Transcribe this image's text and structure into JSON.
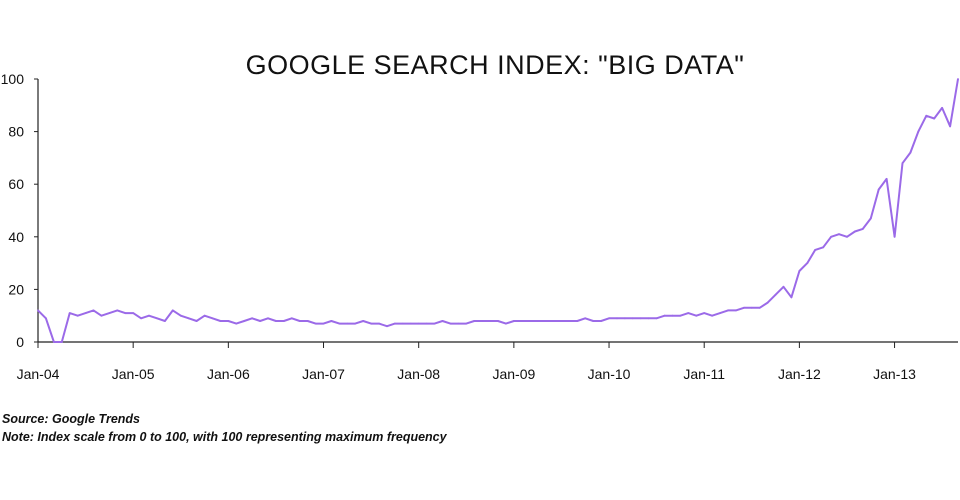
{
  "chart_data": {
    "type": "line",
    "title": "GOOGLE SEARCH INDEX: \"BIG DATA\"",
    "xlabel": "",
    "ylabel": "",
    "ylim": [
      0,
      100
    ],
    "yticks": [
      0,
      20,
      40,
      60,
      80,
      100
    ],
    "xlim": [
      "2004-01",
      "2013-09"
    ],
    "xtick_labels": [
      "Jan-04",
      "Jan-05",
      "Jan-06",
      "Jan-07",
      "Jan-08",
      "Jan-09",
      "Jan-10",
      "Jan-11",
      "Jan-12",
      "Jan-13"
    ],
    "grid": false,
    "legend": "none",
    "color": "#9b6ae8",
    "series": [
      {
        "x": [
          "2004-01",
          "2004-02",
          "2004-03",
          "2004-04",
          "2004-05",
          "2004-06",
          "2004-07",
          "2004-08",
          "2004-09",
          "2004-10",
          "2004-11",
          "2004-12",
          "2005-01",
          "2005-02",
          "2005-03",
          "2005-04",
          "2005-05",
          "2005-06",
          "2005-07",
          "2005-08",
          "2005-09",
          "2005-10",
          "2005-11",
          "2005-12",
          "2006-01",
          "2006-02",
          "2006-03",
          "2006-04",
          "2006-05",
          "2006-06",
          "2006-07",
          "2006-08",
          "2006-09",
          "2006-10",
          "2006-11",
          "2006-12",
          "2007-01",
          "2007-02",
          "2007-03",
          "2007-04",
          "2007-05",
          "2007-06",
          "2007-07",
          "2007-08",
          "2007-09",
          "2007-10",
          "2007-11",
          "2007-12",
          "2008-01",
          "2008-02",
          "2008-03",
          "2008-04",
          "2008-05",
          "2008-06",
          "2008-07",
          "2008-08",
          "2008-09",
          "2008-10",
          "2008-11",
          "2008-12",
          "2009-01",
          "2009-02",
          "2009-03",
          "2009-04",
          "2009-05",
          "2009-06",
          "2009-07",
          "2009-08",
          "2009-09",
          "2009-10",
          "2009-11",
          "2009-12",
          "2010-01",
          "2010-02",
          "2010-03",
          "2010-04",
          "2010-05",
          "2010-06",
          "2010-07",
          "2010-08",
          "2010-09",
          "2010-10",
          "2010-11",
          "2010-12",
          "2011-01",
          "2011-02",
          "2011-03",
          "2011-04",
          "2011-05",
          "2011-06",
          "2011-07",
          "2011-08",
          "2011-09",
          "2011-10",
          "2011-11",
          "2011-12",
          "2012-01",
          "2012-02",
          "2012-03",
          "2012-04",
          "2012-05",
          "2012-06",
          "2012-07",
          "2012-08",
          "2012-09",
          "2012-10",
          "2012-11",
          "2012-12",
          "2013-01",
          "2013-02",
          "2013-03",
          "2013-04",
          "2013-05",
          "2013-06",
          "2013-07",
          "2013-08",
          "2013-09"
        ],
        "values": [
          12,
          9,
          0,
          0,
          11,
          10,
          11,
          12,
          10,
          11,
          12,
          11,
          11,
          9,
          10,
          9,
          8,
          12,
          10,
          9,
          8,
          10,
          9,
          8,
          8,
          7,
          8,
          9,
          8,
          9,
          8,
          8,
          9,
          8,
          8,
          7,
          7,
          8,
          7,
          7,
          7,
          8,
          7,
          7,
          6,
          7,
          7,
          7,
          7,
          7,
          7,
          8,
          7,
          7,
          7,
          8,
          8,
          8,
          8,
          7,
          8,
          8,
          8,
          8,
          8,
          8,
          8,
          8,
          8,
          9,
          8,
          8,
          9,
          9,
          9,
          9,
          9,
          9,
          9,
          10,
          10,
          10,
          11,
          10,
          11,
          10,
          11,
          12,
          12,
          13,
          13,
          13,
          15,
          18,
          21,
          17,
          27,
          30,
          35,
          36,
          40,
          41,
          40,
          42,
          43,
          47,
          58,
          62,
          40,
          68,
          72,
          80,
          86,
          85,
          89,
          82,
          100
        ]
      }
    ]
  },
  "footnotes": {
    "source": "Source: Google Trends",
    "note": "Note: Index scale from 0 to 100, with 100 representing maximum frequency"
  }
}
